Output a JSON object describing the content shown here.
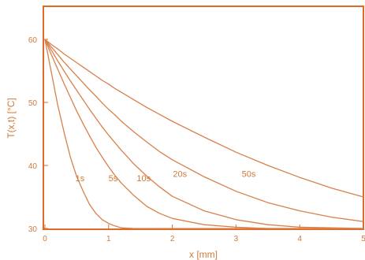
{
  "chart_data": {
    "type": "line",
    "title": "",
    "xlabel": "x  [mm]",
    "ylabel": "T(x,t)  [°C]",
    "xlim": [
      0,
      5
    ],
    "ylim": [
      30,
      65
    ],
    "xticks": [
      0,
      1,
      2,
      3,
      4,
      5
    ],
    "yticks": [
      30,
      40,
      50,
      60
    ],
    "grid": false,
    "legend": "none",
    "colors": {
      "axis": "#e06a28",
      "line": "#d9804a",
      "text": "#cf7a3a"
    },
    "x": [
      0,
      0.1,
      0.2,
      0.3,
      0.4,
      0.5,
      0.6,
      0.7,
      0.8,
      0.9,
      1.0,
      1.1,
      1.2,
      1.4,
      1.6,
      1.8,
      2.0,
      2.5,
      3.0,
      3.5,
      4.0,
      4.5,
      5.0
    ],
    "series": [
      {
        "name": "1s",
        "label_at": [
          0.55,
          37.5
        ],
        "values": [
          60,
          54.8,
          49.6,
          45.3,
          41.3,
          38.2,
          35.9,
          33.8,
          32.4,
          31.4,
          30.8,
          30.4,
          30.1,
          30.0,
          30.0,
          30.0,
          30.0,
          30.0,
          30.0,
          30.0,
          30.0,
          30.0,
          30.0
        ]
      },
      {
        "name": "5s",
        "label_at": [
          1.07,
          37.5
        ],
        "values": [
          60,
          57.6,
          55.3,
          53.0,
          50.8,
          48.6,
          46.6,
          44.7,
          42.9,
          41.3,
          39.8,
          38.4,
          37.2,
          35.2,
          33.5,
          32.4,
          31.6,
          30.6,
          30.2,
          30.0,
          30.0,
          30.0,
          30.0
        ]
      },
      {
        "name": "10s",
        "label_at": [
          1.55,
          37.5
        ],
        "values": [
          60,
          58.3,
          56.6,
          55.0,
          53.4,
          51.9,
          50.4,
          48.9,
          47.5,
          46.1,
          44.8,
          43.6,
          42.4,
          40.2,
          38.3,
          36.6,
          35.1,
          32.8,
          31.4,
          30.6,
          30.2,
          30.1,
          30.0
        ]
      },
      {
        "name": "20s",
        "label_at": [
          2.12,
          38.2
        ],
        "values": [
          60,
          58.8,
          57.6,
          56.4,
          55.3,
          54.2,
          53.1,
          52.0,
          51.0,
          49.9,
          48.9,
          48.0,
          47.0,
          45.3,
          43.7,
          42.2,
          40.9,
          38.2,
          35.9,
          34.1,
          32.8,
          31.8,
          31.1
        ]
      },
      {
        "name": "50s",
        "label_at": [
          3.2,
          38.2
        ],
        "values": [
          60,
          59.2,
          58.5,
          57.7,
          57.0,
          56.3,
          55.6,
          54.9,
          54.2,
          53.5,
          52.9,
          52.2,
          51.6,
          50.4,
          49.2,
          48.1,
          47.0,
          44.5,
          42.1,
          40.0,
          38.1,
          36.4,
          35.0
        ]
      }
    ]
  }
}
